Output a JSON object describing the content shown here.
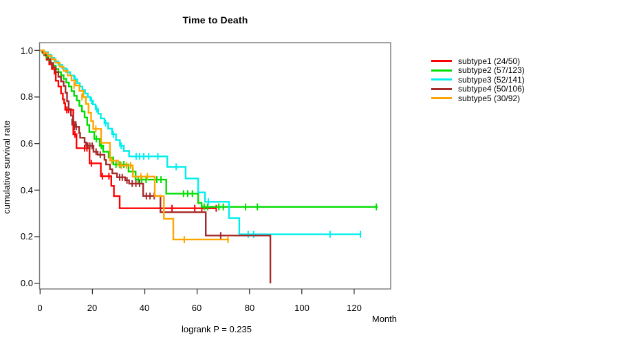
{
  "title": "Time to Death",
  "footer": "logrank P = 0.235",
  "chart_data": {
    "type": "line",
    "subtype": "kaplan-meier-survival-steps",
    "title": "Time to Death",
    "xlabel": "Month",
    "ylabel": "cumulative survival rate",
    "xlim": [
      0,
      134
    ],
    "ylim": [
      0,
      1.0
    ],
    "grid": false,
    "legend_position": "right-outside",
    "annotation": "logrank P = 0.235",
    "x_ticks": [
      0,
      20,
      40,
      60,
      80,
      100,
      120
    ],
    "x_tick_labels": [
      "0",
      "20",
      "40",
      "60",
      "80",
      "100",
      "120"
    ],
    "y_ticks": [
      0.0,
      0.2,
      0.4,
      0.6,
      0.8,
      1.0
    ],
    "y_tick_labels": [
      "0.0",
      "0.2",
      "0.4",
      "0.6",
      "0.8",
      "1.0"
    ],
    "series": [
      {
        "name": "subtype1",
        "label": "subtype1 (24/50)",
        "events": 24,
        "n": 50,
        "color": "#FF0000",
        "end_month": 67.3,
        "points": [
          [
            0,
            1.0
          ],
          [
            1.5,
            0.98
          ],
          [
            2.5,
            0.96
          ],
          [
            3.5,
            0.94
          ],
          [
            4.5,
            0.92
          ],
          [
            5.5,
            0.9
          ],
          [
            6,
            0.87
          ],
          [
            7,
            0.845
          ],
          [
            8,
            0.815
          ],
          [
            8.7,
            0.79
          ],
          [
            9.2,
            0.773
          ],
          [
            9.6,
            0.745
          ],
          [
            12.7,
            0.64
          ],
          [
            13.9,
            0.58
          ],
          [
            18.9,
            0.515
          ],
          [
            23.2,
            0.46
          ],
          [
            27.2,
            0.418
          ],
          [
            28.2,
            0.374
          ],
          [
            30.4,
            0.322
          ]
        ],
        "censors": [
          [
            10.2,
            0.745
          ],
          [
            10.9,
            0.745
          ],
          [
            13.3,
            0.64
          ],
          [
            17.0,
            0.58
          ],
          [
            17.9,
            0.58
          ],
          [
            19.6,
            0.515
          ],
          [
            23.8,
            0.46
          ],
          [
            26.3,
            0.46
          ],
          [
            50.4,
            0.322
          ],
          [
            59.1,
            0.322
          ],
          [
            61.8,
            0.322
          ],
          [
            67.3,
            0.322
          ]
        ]
      },
      {
        "name": "subtype2",
        "label": "subtype2 (57/123)",
        "events": 57,
        "n": 123,
        "color": "#00DD00",
        "end_month": 129,
        "points": [
          [
            0,
            1.0
          ],
          [
            0.8,
            0.992
          ],
          [
            1.6,
            0.98
          ],
          [
            2.4,
            0.97
          ],
          [
            3.2,
            0.958
          ],
          [
            4,
            0.946
          ],
          [
            5,
            0.934
          ],
          [
            6,
            0.92
          ],
          [
            7,
            0.907
          ],
          [
            8,
            0.893
          ],
          [
            9,
            0.878
          ],
          [
            10,
            0.862
          ],
          [
            11,
            0.845
          ],
          [
            12,
            0.825
          ],
          [
            13,
            0.805
          ],
          [
            14,
            0.785
          ],
          [
            15,
            0.762
          ],
          [
            16,
            0.738
          ],
          [
            17,
            0.712
          ],
          [
            18,
            0.68
          ],
          [
            18.8,
            0.65
          ],
          [
            20.7,
            0.62
          ],
          [
            22.8,
            0.59
          ],
          [
            24.1,
            0.565
          ],
          [
            26.2,
            0.54
          ],
          [
            28,
            0.51
          ],
          [
            33.8,
            0.48
          ],
          [
            36.5,
            0.445
          ],
          [
            48.2,
            0.385
          ],
          [
            60.4,
            0.345
          ],
          [
            61.7,
            0.328
          ]
        ],
        "censors": [
          [
            21.5,
            0.62
          ],
          [
            23.4,
            0.59
          ],
          [
            29,
            0.51
          ],
          [
            30.5,
            0.51
          ],
          [
            32,
            0.51
          ],
          [
            35.5,
            0.48
          ],
          [
            37.5,
            0.445
          ],
          [
            38.8,
            0.445
          ],
          [
            40.5,
            0.445
          ],
          [
            44.6,
            0.445
          ],
          [
            46.2,
            0.445
          ],
          [
            54.8,
            0.385
          ],
          [
            56.4,
            0.385
          ],
          [
            58.2,
            0.385
          ],
          [
            62.7,
            0.328
          ],
          [
            64,
            0.328
          ],
          [
            68.3,
            0.328
          ],
          [
            70,
            0.328
          ],
          [
            78.5,
            0.328
          ],
          [
            83,
            0.328
          ],
          [
            128.5,
            0.328
          ]
        ]
      },
      {
        "name": "subtype3",
        "label": "subtype3 (52/141)",
        "events": 52,
        "n": 141,
        "color": "#00EEEE",
        "end_month": 122.7,
        "points": [
          [
            0,
            1.0
          ],
          [
            1.5,
            0.993
          ],
          [
            3,
            0.982
          ],
          [
            4.2,
            0.968
          ],
          [
            5.5,
            0.953
          ],
          [
            7,
            0.938
          ],
          [
            8.5,
            0.923
          ],
          [
            10,
            0.907
          ],
          [
            11.5,
            0.892
          ],
          [
            13,
            0.876
          ],
          [
            14.2,
            0.86
          ],
          [
            15.2,
            0.845
          ],
          [
            16.2,
            0.83
          ],
          [
            17.2,
            0.815
          ],
          [
            18.2,
            0.8
          ],
          [
            19.2,
            0.785
          ],
          [
            20.2,
            0.768
          ],
          [
            21.2,
            0.748
          ],
          [
            22.2,
            0.728
          ],
          [
            23.2,
            0.708
          ],
          [
            24.6,
            0.688
          ],
          [
            26,
            0.664
          ],
          [
            27.5,
            0.64
          ],
          [
            29,
            0.615
          ],
          [
            30.5,
            0.59
          ],
          [
            32,
            0.568
          ],
          [
            34,
            0.545
          ],
          [
            48.6,
            0.5
          ],
          [
            55.6,
            0.45
          ],
          [
            60.4,
            0.39
          ],
          [
            63,
            0.35
          ],
          [
            72.2,
            0.28
          ],
          [
            76.1,
            0.21
          ]
        ],
        "censors": [
          [
            10.5,
            0.907
          ],
          [
            13.4,
            0.876
          ],
          [
            19.6,
            0.785
          ],
          [
            21.6,
            0.748
          ],
          [
            25,
            0.688
          ],
          [
            28,
            0.64
          ],
          [
            31,
            0.59
          ],
          [
            36.7,
            0.545
          ],
          [
            38,
            0.545
          ],
          [
            39.6,
            0.545
          ],
          [
            41.5,
            0.545
          ],
          [
            45,
            0.545
          ],
          [
            52,
            0.5
          ],
          [
            64.3,
            0.35
          ],
          [
            79.5,
            0.21
          ],
          [
            81.6,
            0.21
          ],
          [
            110.8,
            0.21
          ],
          [
            122.4,
            0.21
          ]
        ]
      },
      {
        "name": "subtype4",
        "label": "subtype4 (50/106)",
        "events": 50,
        "n": 106,
        "color": "#A52A2A",
        "end_month": 88,
        "points": [
          [
            0,
            1.0
          ],
          [
            1,
            0.99
          ],
          [
            2,
            0.978
          ],
          [
            3,
            0.962
          ],
          [
            4,
            0.946
          ],
          [
            5,
            0.927
          ],
          [
            6,
            0.907
          ],
          [
            7,
            0.887
          ],
          [
            8,
            0.867
          ],
          [
            9,
            0.847
          ],
          [
            9.7,
            0.818
          ],
          [
            10.3,
            0.782
          ],
          [
            10.9,
            0.748
          ],
          [
            11.8,
            0.72
          ],
          [
            12.6,
            0.692
          ],
          [
            13.6,
            0.672
          ],
          [
            14.9,
            0.645
          ],
          [
            15.3,
            0.625
          ],
          [
            17,
            0.605
          ],
          [
            17.6,
            0.59
          ],
          [
            20.4,
            0.565
          ],
          [
            22,
            0.552
          ],
          [
            24.6,
            0.53
          ],
          [
            25.2,
            0.51
          ],
          [
            26.7,
            0.49
          ],
          [
            27.6,
            0.472
          ],
          [
            29.4,
            0.455
          ],
          [
            32.5,
            0.442
          ],
          [
            34,
            0.428
          ],
          [
            39.4,
            0.375
          ],
          [
            46,
            0.305
          ],
          [
            63.3,
            0.205
          ],
          [
            88,
            0.0
          ]
        ],
        "censors": [
          [
            12.2,
            0.692
          ],
          [
            13.1,
            0.672
          ],
          [
            13.8,
            0.672
          ],
          [
            18.2,
            0.59
          ],
          [
            19,
            0.59
          ],
          [
            19.9,
            0.59
          ],
          [
            21.4,
            0.565
          ],
          [
            23,
            0.552
          ],
          [
            30.4,
            0.455
          ],
          [
            31.4,
            0.455
          ],
          [
            33.2,
            0.442
          ],
          [
            35.2,
            0.428
          ],
          [
            36.6,
            0.428
          ],
          [
            38,
            0.428
          ],
          [
            40.6,
            0.375
          ],
          [
            42,
            0.375
          ],
          [
            43.6,
            0.375
          ],
          [
            69,
            0.205
          ]
        ]
      },
      {
        "name": "subtype5",
        "label": "subtype5 (30/92)",
        "events": 30,
        "n": 92,
        "color": "#FFA500",
        "end_month": 72.2,
        "points": [
          [
            0,
            1.0
          ],
          [
            1.5,
            0.989
          ],
          [
            3,
            0.976
          ],
          [
            4.5,
            0.962
          ],
          [
            6,
            0.947
          ],
          [
            7.5,
            0.93
          ],
          [
            9,
            0.912
          ],
          [
            10.5,
            0.892
          ],
          [
            12,
            0.871
          ],
          [
            13.5,
            0.85
          ],
          [
            15,
            0.826
          ],
          [
            16.5,
            0.8
          ],
          [
            17.5,
            0.77
          ],
          [
            18.5,
            0.732
          ],
          [
            19.5,
            0.697
          ],
          [
            20.3,
            0.663
          ],
          [
            23.3,
            0.603
          ],
          [
            26.7,
            0.527
          ],
          [
            29.8,
            0.506
          ],
          [
            35.4,
            0.458
          ],
          [
            43.8,
            0.374
          ],
          [
            47.3,
            0.277
          ],
          [
            50.9,
            0.188
          ]
        ],
        "censors": [
          [
            13,
            0.85
          ],
          [
            16,
            0.8
          ],
          [
            21.3,
            0.663
          ],
          [
            27.4,
            0.527
          ],
          [
            31,
            0.506
          ],
          [
            33,
            0.506
          ],
          [
            34.6,
            0.506
          ],
          [
            38.5,
            0.458
          ],
          [
            41,
            0.458
          ],
          [
            55.1,
            0.188
          ],
          [
            71.8,
            0.188
          ]
        ]
      }
    ]
  }
}
